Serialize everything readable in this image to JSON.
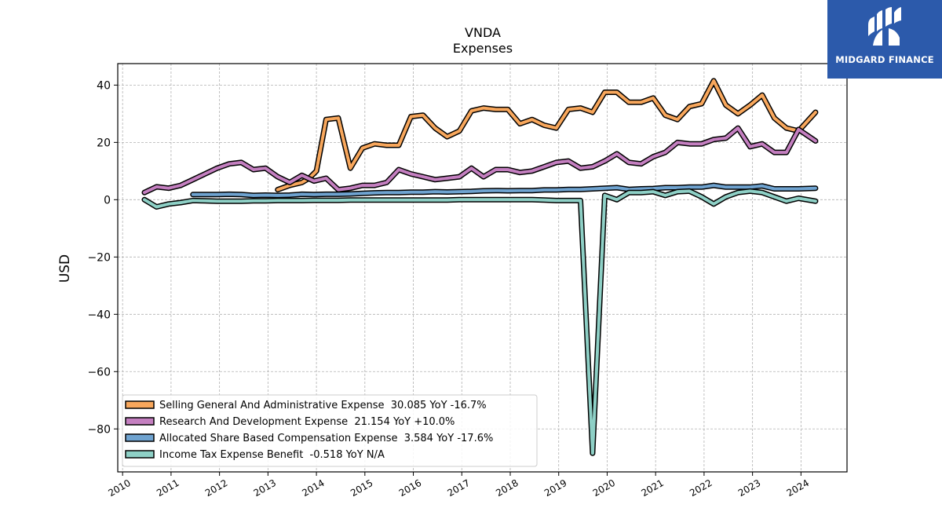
{
  "logo": {
    "text": "MIDGARD FINANCE",
    "background": "#2c5aab"
  },
  "chart_data": {
    "type": "line",
    "title": "VNDA",
    "subtitle": "Expenses",
    "ylabel": "USD",
    "xlabel": "",
    "xlim": [
      2009.9,
      2024.95
    ],
    "ylim": [
      -95,
      47.5
    ],
    "yticks": [
      40,
      20,
      0,
      -20,
      -40,
      -60,
      -80
    ],
    "ytick_labels": [
      "40",
      "20",
      "0",
      "−20",
      "−40",
      "−60",
      "−80"
    ],
    "xticks": [
      2010,
      2011,
      2012,
      2013,
      2014,
      2015,
      2016,
      2017,
      2018,
      2019,
      2020,
      2021,
      2022,
      2023,
      2024
    ],
    "xtick_labels": [
      "2010",
      "2011",
      "2012",
      "2013",
      "2014",
      "2015",
      "2016",
      "2017",
      "2018",
      "2019",
      "2020",
      "2021",
      "2022",
      "2023",
      "2024"
    ],
    "grid": true,
    "legend_position": "lower-left",
    "series": [
      {
        "name": "Selling General And Administrative Expense  30.085 YoY -16.7%",
        "color": "#f8a75c",
        "points": [
          [
            2013.2,
            3.5
          ],
          [
            2013.45,
            5
          ],
          [
            2013.7,
            6
          ],
          [
            2013.85,
            7.5
          ],
          [
            2014.0,
            10
          ],
          [
            2014.2,
            28
          ],
          [
            2014.45,
            28.5
          ],
          [
            2014.7,
            11
          ],
          [
            2014.95,
            18
          ],
          [
            2015.2,
            19.5
          ],
          [
            2015.45,
            19
          ],
          [
            2015.7,
            19
          ],
          [
            2015.95,
            29
          ],
          [
            2016.2,
            29.5
          ],
          [
            2016.45,
            25
          ],
          [
            2016.7,
            22
          ],
          [
            2016.95,
            24
          ],
          [
            2017.2,
            31
          ],
          [
            2017.45,
            32
          ],
          [
            2017.7,
            31.5
          ],
          [
            2017.95,
            31.5
          ],
          [
            2018.2,
            26.5
          ],
          [
            2018.45,
            28
          ],
          [
            2018.7,
            26
          ],
          [
            2018.95,
            25
          ],
          [
            2019.2,
            31.5
          ],
          [
            2019.45,
            32
          ],
          [
            2019.7,
            30.5
          ],
          [
            2019.95,
            37.5
          ],
          [
            2020.2,
            37.5
          ],
          [
            2020.45,
            34
          ],
          [
            2020.7,
            34
          ],
          [
            2020.95,
            35.5
          ],
          [
            2021.2,
            29.5
          ],
          [
            2021.45,
            28
          ],
          [
            2021.7,
            32.5
          ],
          [
            2021.95,
            33.5
          ],
          [
            2022.2,
            41.5
          ],
          [
            2022.45,
            33
          ],
          [
            2022.7,
            30
          ],
          [
            2022.95,
            33
          ],
          [
            2023.2,
            36.5
          ],
          [
            2023.45,
            28.5
          ],
          [
            2023.7,
            25
          ],
          [
            2023.95,
            24
          ],
          [
            2024.3,
            30.5
          ]
        ]
      },
      {
        "name": "Research And Development Expense  21.154 YoY +10.0%",
        "color": "#c47fc0",
        "points": [
          [
            2010.45,
            2.5
          ],
          [
            2010.7,
            4.5
          ],
          [
            2010.95,
            4
          ],
          [
            2011.2,
            5
          ],
          [
            2011.45,
            7
          ],
          [
            2011.7,
            9
          ],
          [
            2011.95,
            11
          ],
          [
            2012.2,
            12.5
          ],
          [
            2012.45,
            13
          ],
          [
            2012.7,
            10.5
          ],
          [
            2012.95,
            11
          ],
          [
            2013.2,
            8
          ],
          [
            2013.45,
            6
          ],
          [
            2013.7,
            8.5
          ],
          [
            2013.95,
            6.5
          ],
          [
            2014.2,
            7.5
          ],
          [
            2014.45,
            3.5
          ],
          [
            2014.7,
            4
          ],
          [
            2014.95,
            5
          ],
          [
            2015.2,
            5
          ],
          [
            2015.45,
            6
          ],
          [
            2015.7,
            10.5
          ],
          [
            2015.95,
            9
          ],
          [
            2016.2,
            8
          ],
          [
            2016.45,
            7
          ],
          [
            2016.7,
            7.5
          ],
          [
            2016.95,
            8
          ],
          [
            2017.2,
            11
          ],
          [
            2017.45,
            8
          ],
          [
            2017.7,
            10.5
          ],
          [
            2017.95,
            10.5
          ],
          [
            2018.2,
            9.5
          ],
          [
            2018.45,
            10
          ],
          [
            2018.7,
            11.5
          ],
          [
            2018.95,
            13
          ],
          [
            2019.2,
            13.5
          ],
          [
            2019.45,
            11
          ],
          [
            2019.7,
            11.5
          ],
          [
            2019.95,
            13.5
          ],
          [
            2020.2,
            16
          ],
          [
            2020.45,
            13
          ],
          [
            2020.7,
            12.5
          ],
          [
            2020.95,
            15
          ],
          [
            2021.2,
            16.5
          ],
          [
            2021.45,
            20
          ],
          [
            2021.7,
            19.5
          ],
          [
            2021.95,
            19.5
          ],
          [
            2022.2,
            21
          ],
          [
            2022.45,
            21.5
          ],
          [
            2022.7,
            25
          ],
          [
            2022.95,
            18.5
          ],
          [
            2023.2,
            19.5
          ],
          [
            2023.45,
            16.5
          ],
          [
            2023.7,
            16.5
          ],
          [
            2023.95,
            24.5
          ],
          [
            2024.3,
            20.5
          ]
        ]
      },
      {
        "name": "Allocated Share Based Compensation Expense  3.584 YoY -17.6%",
        "color": "#6fa3d0",
        "points": [
          [
            2011.45,
            1.8
          ],
          [
            2011.7,
            1.8
          ],
          [
            2011.95,
            1.8
          ],
          [
            2012.2,
            1.9
          ],
          [
            2012.45,
            1.8
          ],
          [
            2012.7,
            1.5
          ],
          [
            2012.95,
            1.6
          ],
          [
            2013.2,
            1.5
          ],
          [
            2013.45,
            1.6
          ],
          [
            2013.7,
            1.9
          ],
          [
            2013.95,
            1.8
          ],
          [
            2014.2,
            1.9
          ],
          [
            2014.45,
            1.9
          ],
          [
            2014.7,
            2
          ],
          [
            2014.95,
            2.2
          ],
          [
            2015.2,
            2.4
          ],
          [
            2015.45,
            2.5
          ],
          [
            2015.7,
            2.5
          ],
          [
            2015.95,
            2.6
          ],
          [
            2016.2,
            2.6
          ],
          [
            2016.45,
            2.8
          ],
          [
            2016.7,
            2.7
          ],
          [
            2016.95,
            2.8
          ],
          [
            2017.2,
            2.9
          ],
          [
            2017.45,
            3.1
          ],
          [
            2017.7,
            3.2
          ],
          [
            2017.95,
            3.1
          ],
          [
            2018.2,
            3.2
          ],
          [
            2018.45,
            3.2
          ],
          [
            2018.7,
            3.4
          ],
          [
            2018.95,
            3.4
          ],
          [
            2019.2,
            3.6
          ],
          [
            2019.45,
            3.6
          ],
          [
            2019.7,
            3.8
          ],
          [
            2019.95,
            4
          ],
          [
            2020.2,
            4.2
          ],
          [
            2020.45,
            3.6
          ],
          [
            2020.7,
            3.8
          ],
          [
            2020.95,
            3.9
          ],
          [
            2021.2,
            4.2
          ],
          [
            2021.45,
            4.2
          ],
          [
            2021.7,
            4.4
          ],
          [
            2021.95,
            4.4
          ],
          [
            2022.2,
            5
          ],
          [
            2022.45,
            4.4
          ],
          [
            2022.7,
            4.4
          ],
          [
            2022.95,
            4.4
          ],
          [
            2023.2,
            4.8
          ],
          [
            2023.45,
            3.8
          ],
          [
            2023.7,
            3.8
          ],
          [
            2023.95,
            3.8
          ],
          [
            2024.3,
            4
          ]
        ]
      },
      {
        "name": "Income Tax Expense Benefit  -0.518 YoY N/A",
        "color": "#8ed0c6",
        "points": [
          [
            2010.45,
            0
          ],
          [
            2010.7,
            -2.5
          ],
          [
            2010.95,
            -1.5
          ],
          [
            2011.2,
            -1
          ],
          [
            2011.45,
            -0.3
          ],
          [
            2011.7,
            -0.4
          ],
          [
            2011.95,
            -0.5
          ],
          [
            2012.2,
            -0.5
          ],
          [
            2012.45,
            -0.5
          ],
          [
            2012.7,
            -0.4
          ],
          [
            2012.95,
            -0.4
          ],
          [
            2013.2,
            -0.3
          ],
          [
            2013.45,
            -0.3
          ],
          [
            2013.7,
            -0.3
          ],
          [
            2013.95,
            -0.2
          ],
          [
            2014.2,
            -0.2
          ],
          [
            2014.45,
            -0.2
          ],
          [
            2014.7,
            -0.1
          ],
          [
            2014.95,
            -0.1
          ],
          [
            2015.2,
            -0.1
          ],
          [
            2015.45,
            -0.1
          ],
          [
            2015.7,
            -0.1
          ],
          [
            2015.95,
            -0.1
          ],
          [
            2016.2,
            -0.1
          ],
          [
            2016.45,
            -0.1
          ],
          [
            2016.7,
            -0.1
          ],
          [
            2016.95,
            0
          ],
          [
            2017.2,
            0
          ],
          [
            2017.45,
            0
          ],
          [
            2017.7,
            0
          ],
          [
            2017.95,
            0
          ],
          [
            2018.2,
            0
          ],
          [
            2018.45,
            0
          ],
          [
            2018.7,
            -0.1
          ],
          [
            2018.95,
            -0.3
          ],
          [
            2019.2,
            -0.3
          ],
          [
            2019.45,
            -0.3
          ],
          [
            2019.7,
            -88.5
          ],
          [
            2019.95,
            1.5
          ],
          [
            2020.2,
            0
          ],
          [
            2020.45,
            2.5
          ],
          [
            2020.7,
            2.5
          ],
          [
            2020.95,
            2.8
          ],
          [
            2021.2,
            1.5
          ],
          [
            2021.45,
            2.8
          ],
          [
            2021.7,
            3
          ],
          [
            2021.95,
            1
          ],
          [
            2022.2,
            -1.5
          ],
          [
            2022.45,
            1
          ],
          [
            2022.7,
            2.5
          ],
          [
            2022.95,
            3
          ],
          [
            2023.2,
            2.5
          ],
          [
            2023.45,
            1
          ],
          [
            2023.7,
            -0.5
          ],
          [
            2023.95,
            0.5
          ],
          [
            2024.3,
            -0.5
          ]
        ]
      }
    ]
  }
}
